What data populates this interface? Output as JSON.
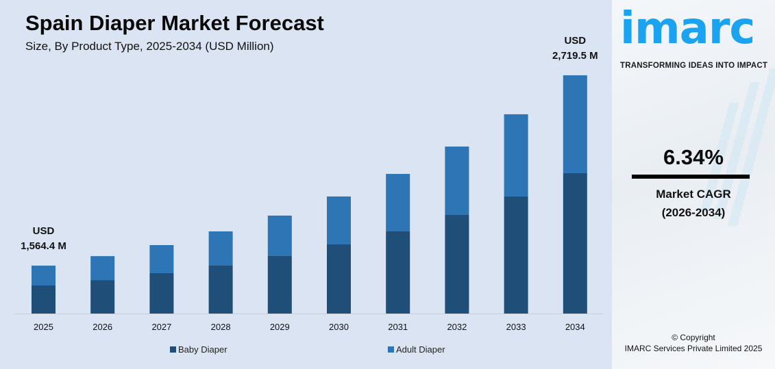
{
  "colors": {
    "baby": "#1f4e79",
    "adult": "#2e75b6",
    "background": "#dbe4f2",
    "brand": "#1aa3f0"
  },
  "chart_data": {
    "type": "bar",
    "stacked": true,
    "title": "Spain Diaper Market Forecast",
    "subtitle": "Size, By Product Type, 2025-2034 (USD Million)",
    "categories": [
      "2025",
      "2026",
      "2027",
      "2028",
      "2029",
      "2030",
      "2031",
      "2032",
      "2033",
      "2034"
    ],
    "series": [
      {
        "name": "Baby Diaper",
        "values": [
          916,
          946,
          997,
          1034,
          1097,
          1172,
          1248,
          1350,
          1459,
          1602
        ]
      },
      {
        "name": "Adult Diaper",
        "values": [
          648.4,
          676,
          692,
          738,
          771,
          812,
          873,
          937,
          1024,
          1117.5
        ]
      }
    ],
    "totals_labels": [
      {
        "index": 0,
        "line1": "USD",
        "line2": "1,564.4 M"
      },
      {
        "index": 9,
        "line1": "USD",
        "line2": "2,719.5 M"
      }
    ],
    "legend_placement": "bottom",
    "grid": false
  },
  "brand": {
    "logo": "imarc",
    "tagline": "TRANSFORMING IDEAS INTO IMPACT"
  },
  "cagr": {
    "value": "6.34%",
    "label": "Market CAGR",
    "period": "(2026-2034)"
  },
  "copyright": {
    "line1": "© Copyright",
    "line2": "IMARC Services Private Limited 2025"
  }
}
